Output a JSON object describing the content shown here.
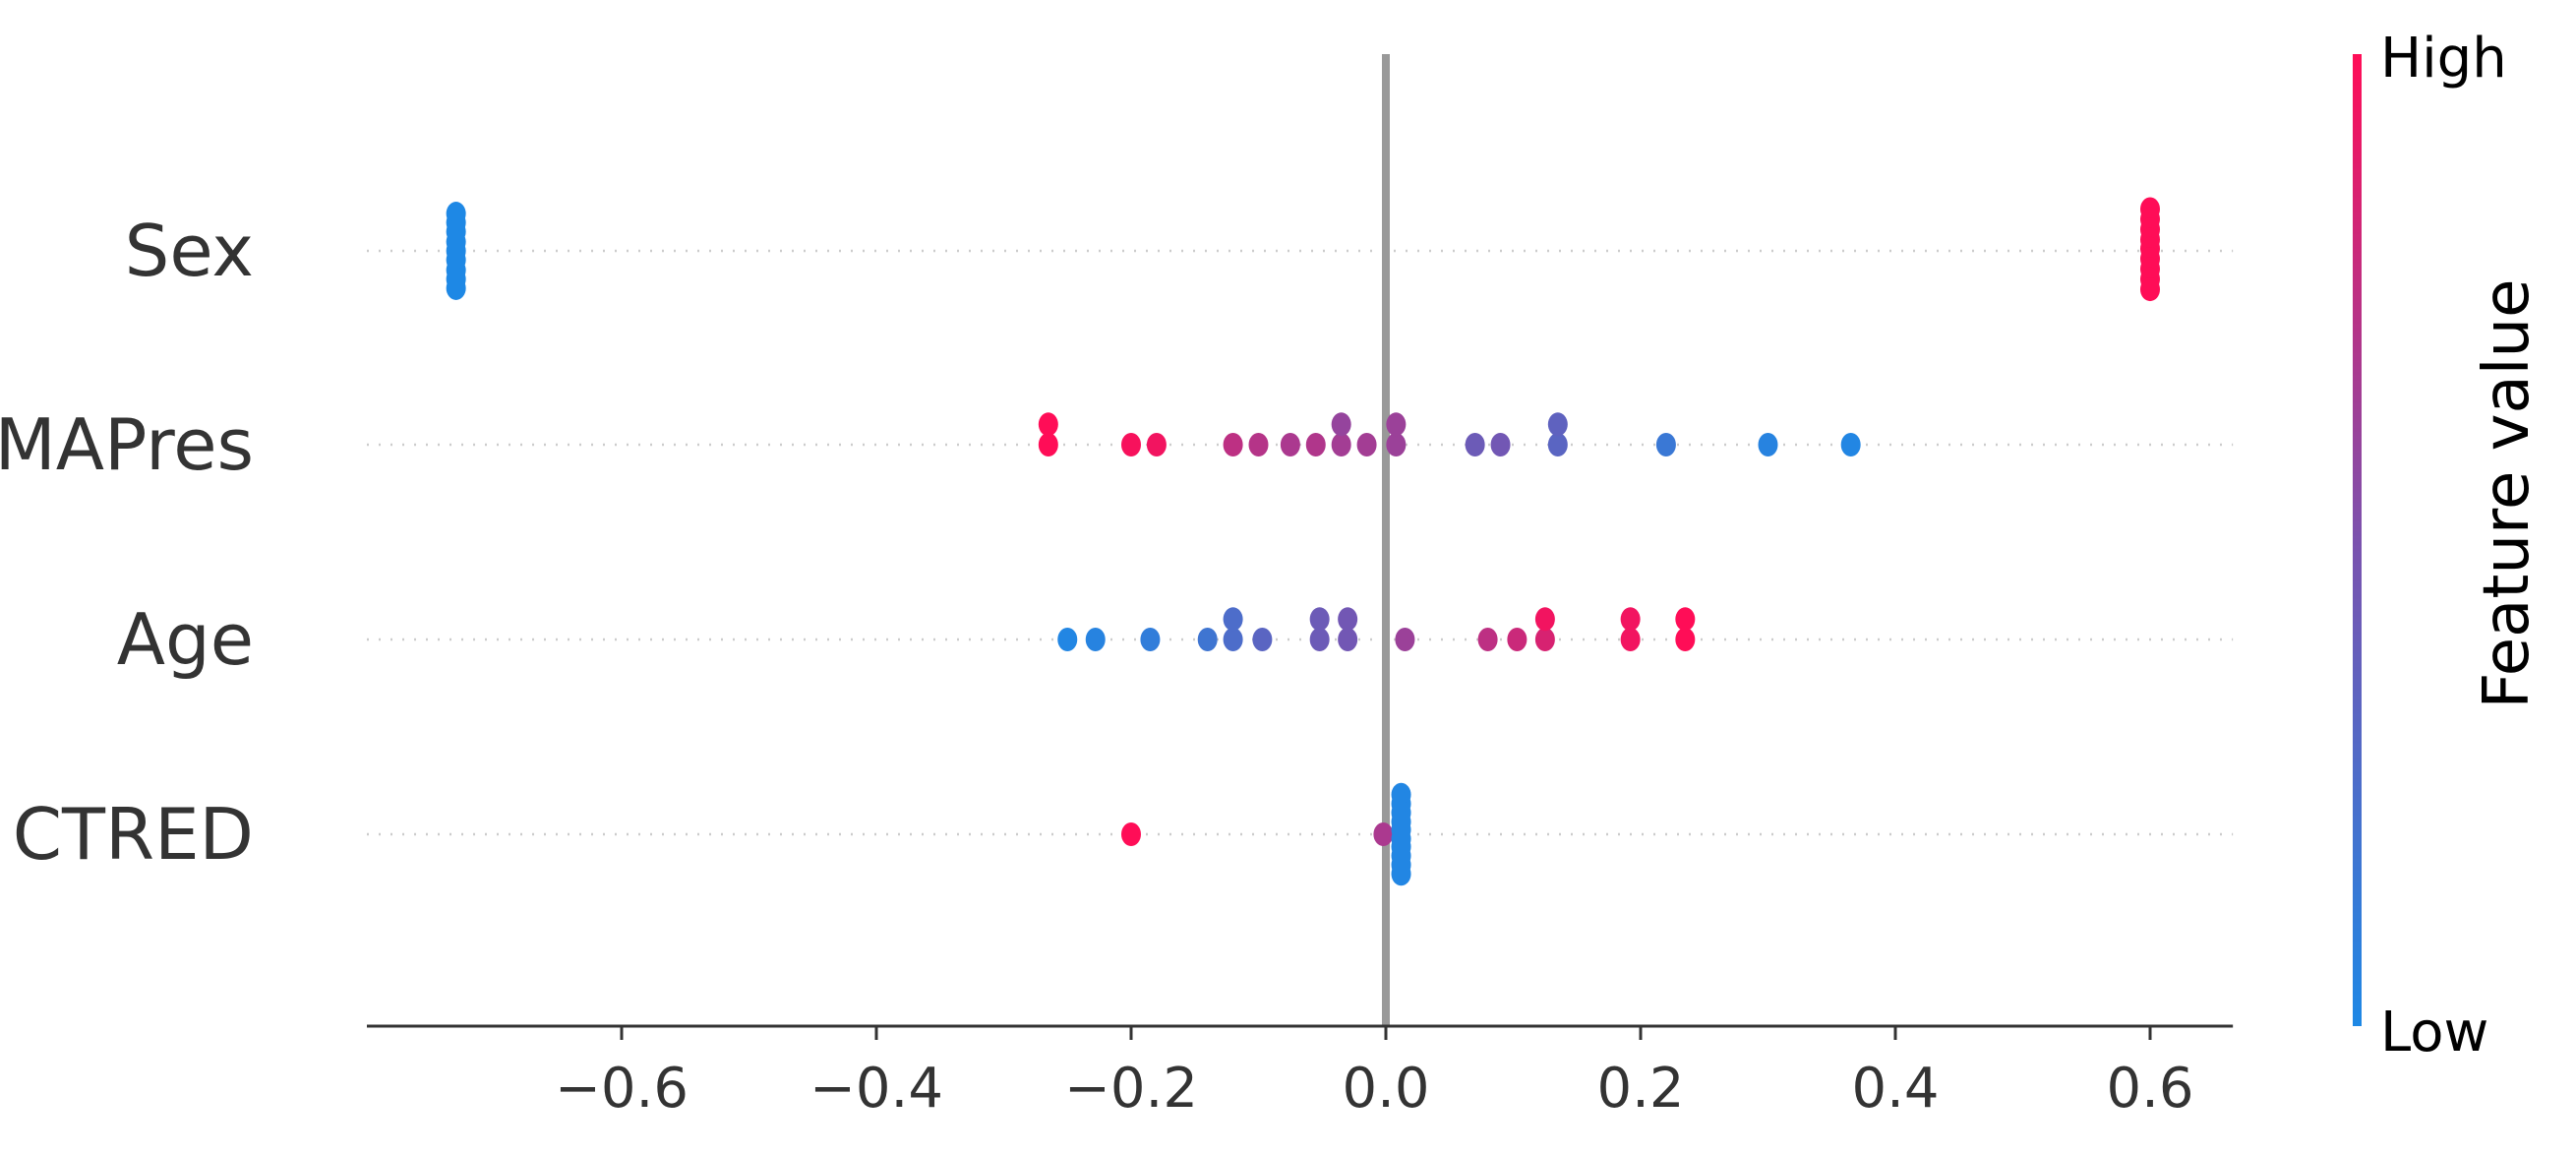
{
  "chart_data": {
    "type": "scatter",
    "title": "",
    "xlabel": "",
    "ylabel": "",
    "xlim": [
      -0.8,
      0.665
    ],
    "xticks": [
      -0.6,
      -0.4,
      -0.2,
      0.0,
      0.2,
      0.4,
      0.6
    ],
    "xtick_labels": [
      "−0.6",
      "−0.4",
      "−0.2",
      "0.0",
      "0.2",
      "0.4",
      "0.6"
    ],
    "grid": false,
    "features": [
      {
        "name": "Sex",
        "points": [
          {
            "x": -0.73,
            "v": 0.0,
            "s": -0.33
          },
          {
            "x": -0.73,
            "v": 0.0,
            "s": -0.25
          },
          {
            "x": -0.73,
            "v": 0.0,
            "s": -0.17
          },
          {
            "x": -0.73,
            "v": 0.0,
            "s": -0.08
          },
          {
            "x": -0.73,
            "v": 0.0,
            "s": 0.0
          },
          {
            "x": -0.73,
            "v": 0.0,
            "s": 0.08
          },
          {
            "x": -0.73,
            "v": 0.0,
            "s": 0.17
          },
          {
            "x": -0.73,
            "v": 0.0,
            "s": 0.25
          },
          {
            "x": -0.73,
            "v": 0.0,
            "s": 0.33
          },
          {
            "x": 0.6,
            "v": 1.0,
            "s": -0.37
          },
          {
            "x": 0.6,
            "v": 1.0,
            "s": -0.28
          },
          {
            "x": 0.6,
            "v": 1.0,
            "s": -0.19
          },
          {
            "x": 0.6,
            "v": 1.0,
            "s": -0.1
          },
          {
            "x": 0.6,
            "v": 1.0,
            "s": -0.02
          },
          {
            "x": 0.6,
            "v": 1.0,
            "s": 0.07
          },
          {
            "x": 0.6,
            "v": 1.0,
            "s": 0.16
          },
          {
            "x": 0.6,
            "v": 1.0,
            "s": 0.25
          },
          {
            "x": 0.6,
            "v": 1.0,
            "s": 0.34
          }
        ]
      },
      {
        "name": "MAPres",
        "points": [
          {
            "x": -0.265,
            "v": 1.0,
            "s": 0.0
          },
          {
            "x": -0.265,
            "v": 1.0,
            "s": -0.18
          },
          {
            "x": -0.2,
            "v": 0.97,
            "s": 0.0
          },
          {
            "x": -0.18,
            "v": 0.95,
            "s": 0.0
          },
          {
            "x": -0.12,
            "v": 0.75,
            "s": 0.0
          },
          {
            "x": -0.1,
            "v": 0.72,
            "s": 0.0
          },
          {
            "x": -0.075,
            "v": 0.68,
            "s": 0.0
          },
          {
            "x": -0.055,
            "v": 0.7,
            "s": 0.0
          },
          {
            "x": -0.035,
            "v": 0.65,
            "s": 0.0
          },
          {
            "x": -0.035,
            "v": 0.6,
            "s": -0.18
          },
          {
            "x": -0.015,
            "v": 0.65,
            "s": 0.0
          },
          {
            "x": 0.008,
            "v": 0.62,
            "s": 0.0
          },
          {
            "x": 0.008,
            "v": 0.62,
            "s": -0.18
          },
          {
            "x": 0.07,
            "v": 0.42,
            "s": 0.0
          },
          {
            "x": 0.09,
            "v": 0.45,
            "s": 0.0
          },
          {
            "x": 0.135,
            "v": 0.32,
            "s": 0.0
          },
          {
            "x": 0.135,
            "v": 0.35,
            "s": -0.18
          },
          {
            "x": 0.22,
            "v": 0.15,
            "s": 0.0
          },
          {
            "x": 0.3,
            "v": 0.05,
            "s": 0.0
          },
          {
            "x": 0.365,
            "v": 0.02,
            "s": 0.0
          }
        ]
      },
      {
        "name": "Age",
        "points": [
          {
            "x": -0.25,
            "v": 0.02,
            "s": 0.0
          },
          {
            "x": -0.228,
            "v": 0.05,
            "s": 0.0
          },
          {
            "x": -0.185,
            "v": 0.1,
            "s": 0.0
          },
          {
            "x": -0.14,
            "v": 0.18,
            "s": 0.0
          },
          {
            "x": -0.12,
            "v": 0.25,
            "s": 0.0
          },
          {
            "x": -0.12,
            "v": 0.25,
            "s": -0.18
          },
          {
            "x": -0.097,
            "v": 0.32,
            "s": 0.0
          },
          {
            "x": -0.052,
            "v": 0.42,
            "s": 0.0
          },
          {
            "x": -0.052,
            "v": 0.42,
            "s": -0.18
          },
          {
            "x": -0.03,
            "v": 0.45,
            "s": 0.0
          },
          {
            "x": -0.03,
            "v": 0.45,
            "s": -0.18
          },
          {
            "x": 0.015,
            "v": 0.62,
            "s": 0.0
          },
          {
            "x": 0.08,
            "v": 0.75,
            "s": 0.0
          },
          {
            "x": 0.103,
            "v": 0.8,
            "s": 0.0
          },
          {
            "x": 0.125,
            "v": 0.85,
            "s": 0.0
          },
          {
            "x": 0.125,
            "v": 0.95,
            "s": -0.18
          },
          {
            "x": 0.192,
            "v": 0.95,
            "s": 0.0
          },
          {
            "x": 0.192,
            "v": 0.95,
            "s": -0.18
          },
          {
            "x": 0.235,
            "v": 1.0,
            "s": 0.0
          },
          {
            "x": 0.235,
            "v": 1.0,
            "s": -0.18
          }
        ]
      },
      {
        "name": "CTRED",
        "points": [
          {
            "x": -0.2,
            "v": 1.0,
            "s": 0.0
          },
          {
            "x": -0.002,
            "v": 0.68,
            "s": 0.0
          },
          {
            "x": 0.012,
            "v": 0.02,
            "s": -0.35
          },
          {
            "x": 0.012,
            "v": 0.02,
            "s": -0.27
          },
          {
            "x": 0.012,
            "v": 0.02,
            "s": -0.19
          },
          {
            "x": 0.012,
            "v": 0.02,
            "s": -0.11
          },
          {
            "x": 0.012,
            "v": 0.02,
            "s": -0.04
          },
          {
            "x": 0.012,
            "v": 0.02,
            "s": 0.04
          },
          {
            "x": 0.012,
            "v": 0.02,
            "s": 0.11
          },
          {
            "x": 0.012,
            "v": 0.02,
            "s": 0.19
          },
          {
            "x": 0.012,
            "v": 0.02,
            "s": 0.27
          },
          {
            "x": 0.012,
            "v": 0.02,
            "s": 0.35
          }
        ]
      }
    ],
    "colorbar": {
      "title": "Feature value",
      "high_label": "High",
      "low_label": "Low",
      "low_color": "#1e88e5",
      "high_color": "#ff0d57"
    }
  }
}
